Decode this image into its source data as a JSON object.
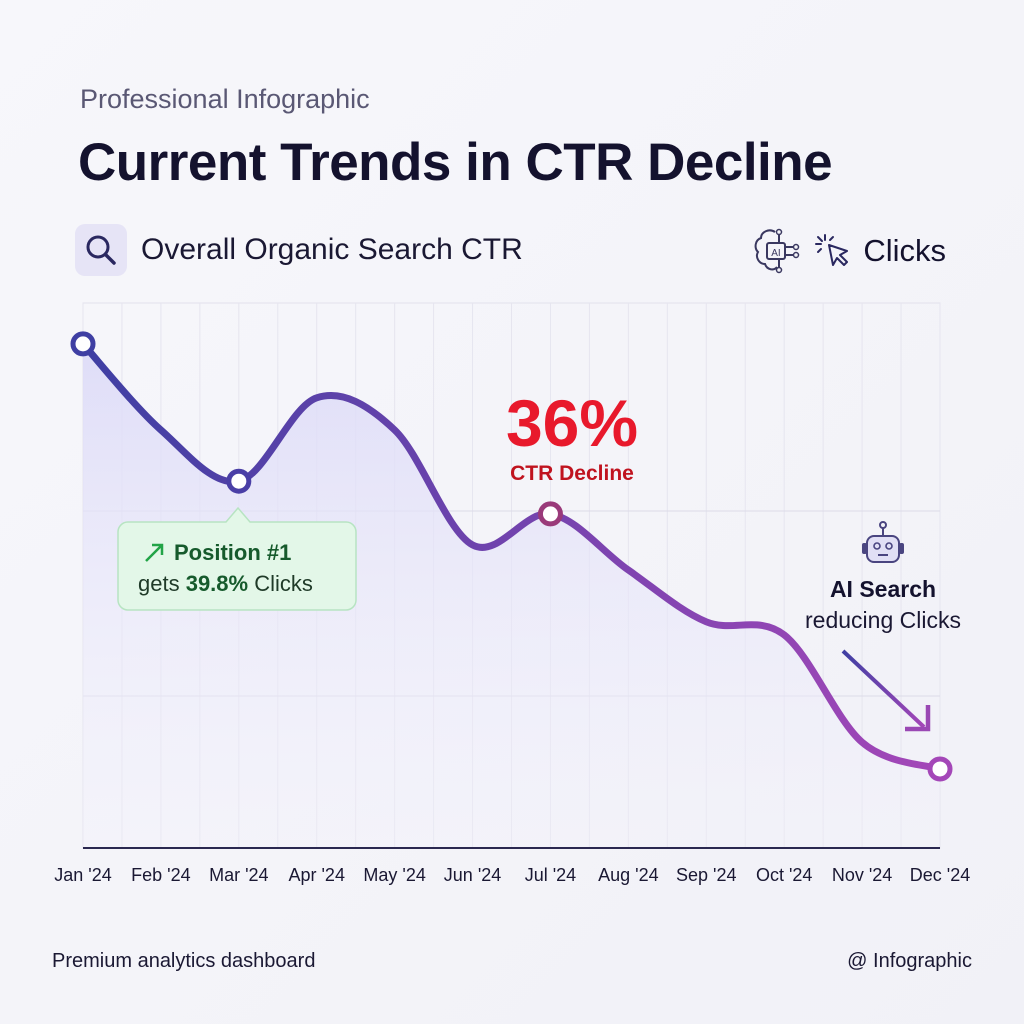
{
  "header": {
    "kicker": "Professional Infographic",
    "title": "Current Trends in CTR Decline",
    "subtitle": "Overall Organic Search CTR",
    "right_label": "Clicks",
    "icons": [
      "search-icon",
      "ai-brain-icon",
      "cursor-click-icon"
    ]
  },
  "chart_data": {
    "type": "line",
    "categories": [
      "Jan '24",
      "Feb '24",
      "Mar '24",
      "Apr '24",
      "May '24",
      "Jun '24",
      "Jul '24",
      "Aug '24",
      "Sep '24",
      "Oct '24",
      "Nov '24",
      "Dec '24"
    ],
    "values": [
      92.5,
      76.7,
      67.3,
      82.6,
      76.7,
      55.6,
      61.3,
      51,
      41.5,
      39.1,
      19.4,
      14.5
    ],
    "ylim": [
      0,
      100
    ],
    "grid": true,
    "markers_at": [
      "Jan '24",
      "Mar '24",
      "Jul '24",
      "Dec '24"
    ],
    "colors": {
      "start": "#3f3fa3",
      "end": "#a447b8",
      "fill": "#e4e2fa"
    },
    "annotations": {
      "decline_value": "36%",
      "decline_label": "CTR Decline",
      "decline_color": "#e8192c",
      "callout_title": "Position #1",
      "callout_prefix": "gets ",
      "callout_value": "39.8%",
      "callout_suffix": " Clicks",
      "ai_title": "AI Search",
      "ai_text": "reducing Clicks"
    }
  },
  "footer": {
    "left": "Premium analytics dashboard",
    "right": "@ Infographic"
  }
}
